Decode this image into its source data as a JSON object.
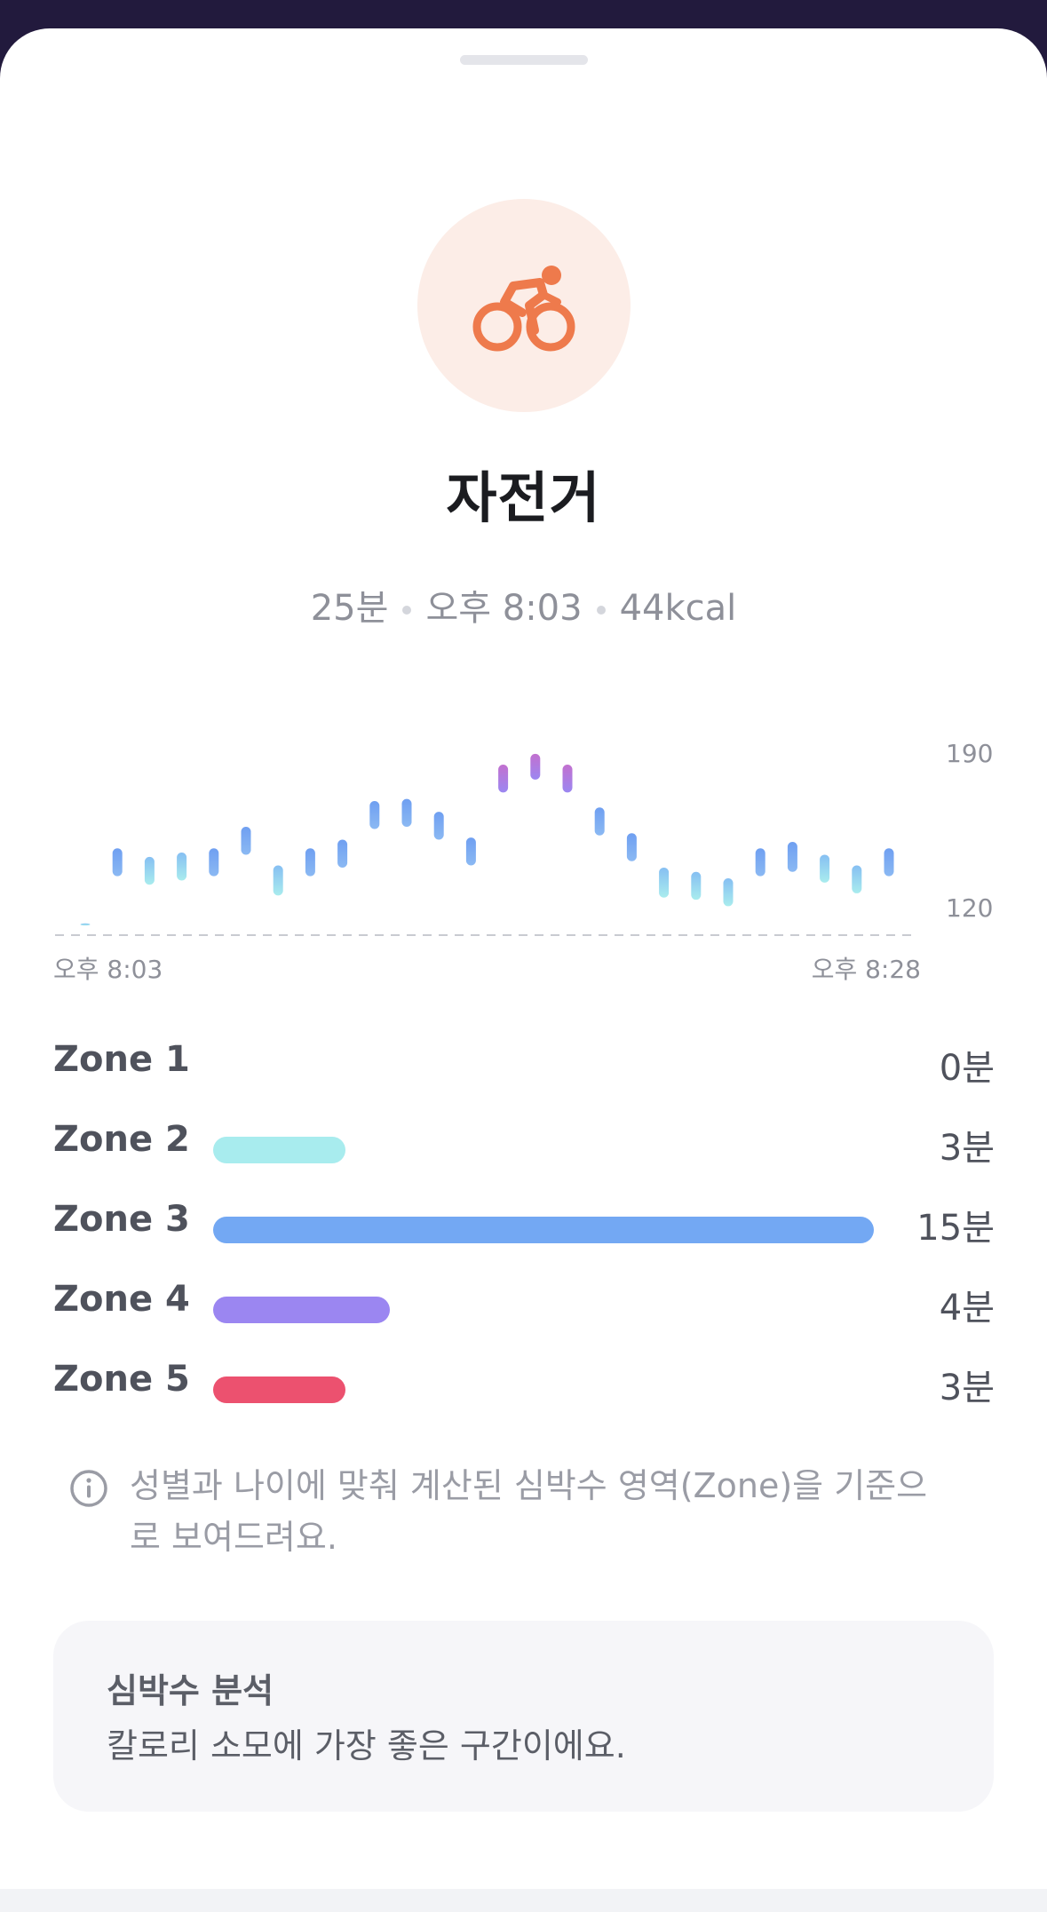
{
  "workout": {
    "icon": "cycling-icon",
    "title": "자전거",
    "duration": "25분",
    "start_time": "오후 8:03",
    "calories": "44kcal"
  },
  "chart_data": {
    "type": "range-bar",
    "x_start_label": "오후 8:03",
    "x_end_label": "오후 8:28",
    "y_ticks": [
      "190",
      "120"
    ],
    "ylim": [
      107,
      196
    ],
    "series_ranges": [
      {
        "min": 109,
        "max": 110
      },
      {
        "min": 132,
        "max": 145
      },
      {
        "min": 128,
        "max": 141
      },
      {
        "min": 130,
        "max": 143
      },
      {
        "min": 132,
        "max": 145
      },
      {
        "min": 142,
        "max": 155
      },
      {
        "min": 123,
        "max": 137
      },
      {
        "min": 132,
        "max": 145
      },
      {
        "min": 136,
        "max": 149
      },
      {
        "min": 154,
        "max": 167
      },
      {
        "min": 155,
        "max": 168
      },
      {
        "min": 149,
        "max": 162
      },
      {
        "min": 137,
        "max": 150
      },
      {
        "min": 171,
        "max": 184
      },
      {
        "min": 177,
        "max": 189
      },
      {
        "min": 171,
        "max": 184
      },
      {
        "min": 151,
        "max": 164
      },
      {
        "min": 139,
        "max": 152
      },
      {
        "min": 122,
        "max": 136
      },
      {
        "min": 121,
        "max": 134
      },
      {
        "min": 118,
        "max": 131
      },
      {
        "min": 132,
        "max": 145
      },
      {
        "min": 134,
        "max": 148
      },
      {
        "min": 129,
        "max": 142
      },
      {
        "min": 124,
        "max": 137
      },
      {
        "min": 132,
        "max": 145
      }
    ],
    "colors": {
      "zone2": "#a6ebee",
      "zone3": "#73a7f2",
      "zone4": "#9a85f0",
      "zone5": "#c46fd0"
    }
  },
  "zones": [
    {
      "name": "Zone 1",
      "value": "0분",
      "fraction": 0.0,
      "color": "#cfd3da"
    },
    {
      "name": "Zone 2",
      "value": "3분",
      "fraction": 0.2,
      "color": "#a8ecee"
    },
    {
      "name": "Zone 3",
      "value": "15분",
      "fraction": 1.0,
      "color": "#73a8f3"
    },
    {
      "name": "Zone 4",
      "value": "4분",
      "fraction": 0.267,
      "color": "#9b86f1"
    },
    {
      "name": "Zone 5",
      "value": "3분",
      "fraction": 0.2,
      "color": "#ec516f"
    }
  ],
  "info": {
    "icon": "info-icon",
    "line1": "성별과 나이에 맞춰 계산된 심박수 영역(Zone)을 기준으",
    "line2": "로 보여드려요."
  },
  "analysis": {
    "title": "심박수 분석",
    "text": "칼로리 소모에 가장 좋은 구간이에요."
  }
}
